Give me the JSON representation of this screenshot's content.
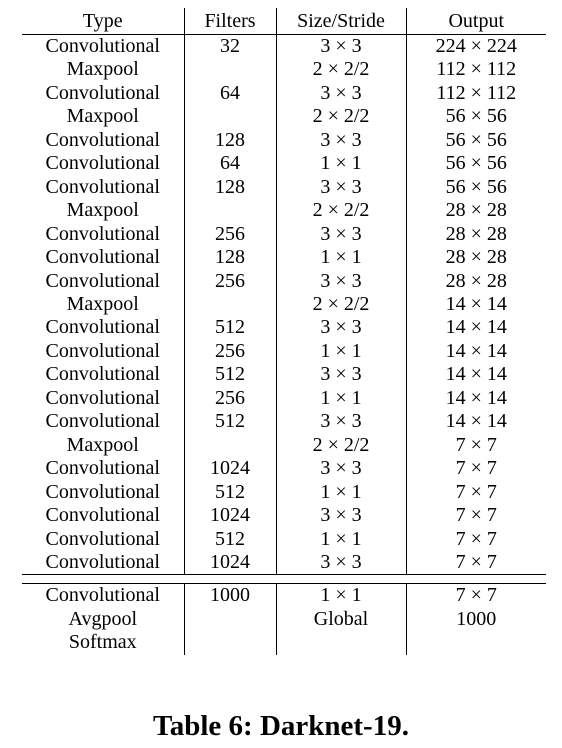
{
  "table": {
    "headers": [
      "Type",
      "Filters",
      "Size/Stride",
      "Output"
    ],
    "rows": [
      [
        "Convolutional",
        "32",
        "3 × 3",
        "224 × 224"
      ],
      [
        "Maxpool",
        "",
        "2 × 2/2",
        "112 × 112"
      ],
      [
        "Convolutional",
        "64",
        "3 × 3",
        "112 × 112"
      ],
      [
        "Maxpool",
        "",
        "2 × 2/2",
        "56 × 56"
      ],
      [
        "Convolutional",
        "128",
        "3 × 3",
        "56 × 56"
      ],
      [
        "Convolutional",
        "64",
        "1 × 1",
        "56 × 56"
      ],
      [
        "Convolutional",
        "128",
        "3 × 3",
        "56 × 56"
      ],
      [
        "Maxpool",
        "",
        "2 × 2/2",
        "28 × 28"
      ],
      [
        "Convolutional",
        "256",
        "3 × 3",
        "28 × 28"
      ],
      [
        "Convolutional",
        "128",
        "1 × 1",
        "28 × 28"
      ],
      [
        "Convolutional",
        "256",
        "3 × 3",
        "28 × 28"
      ],
      [
        "Maxpool",
        "",
        "2 × 2/2",
        "14 × 14"
      ],
      [
        "Convolutional",
        "512",
        "3 × 3",
        "14 × 14"
      ],
      [
        "Convolutional",
        "256",
        "1 × 1",
        "14 × 14"
      ],
      [
        "Convolutional",
        "512",
        "3 × 3",
        "14 × 14"
      ],
      [
        "Convolutional",
        "256",
        "1 × 1",
        "14 × 14"
      ],
      [
        "Convolutional",
        "512",
        "3 × 3",
        "14 × 14"
      ],
      [
        "Maxpool",
        "",
        "2 × 2/2",
        "7 × 7"
      ],
      [
        "Convolutional",
        "1024",
        "3 × 3",
        "7 × 7"
      ],
      [
        "Convolutional",
        "512",
        "1 × 1",
        "7 × 7"
      ],
      [
        "Convolutional",
        "1024",
        "3 × 3",
        "7 × 7"
      ],
      [
        "Convolutional",
        "512",
        "1 × 1",
        "7 × 7"
      ],
      [
        "Convolutional",
        "1024",
        "3 × 3",
        "7 × 7"
      ]
    ],
    "tail_rows": [
      [
        "Convolutional",
        "1000",
        "1 × 1",
        "7 × 7"
      ],
      [
        "Avgpool",
        "",
        "Global",
        "1000"
      ],
      [
        "Softmax",
        "",
        "",
        ""
      ]
    ]
  },
  "caption": {
    "label": "Table 6:",
    "title": "Darknet-19."
  }
}
